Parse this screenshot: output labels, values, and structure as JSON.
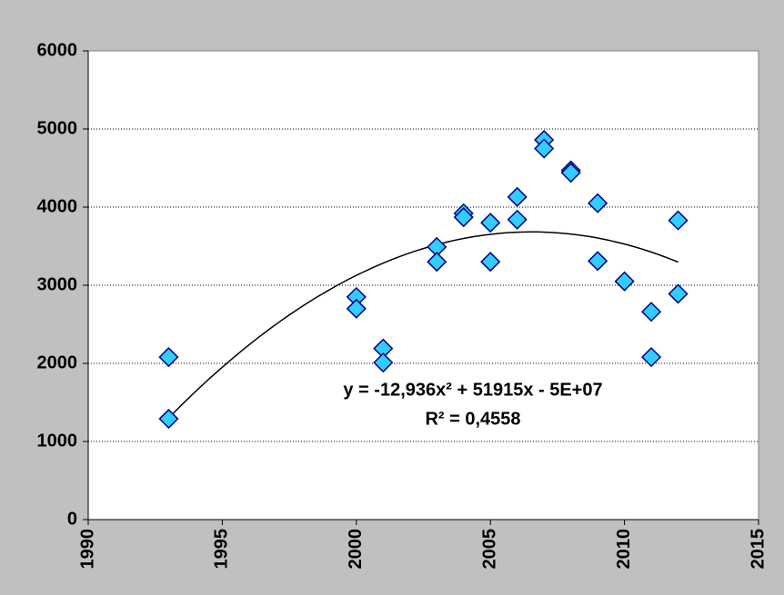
{
  "chart_data": {
    "type": "scatter",
    "x": [
      1993,
      1993,
      2000,
      2000,
      2001,
      2001,
      2003,
      2003,
      2004,
      2004,
      2005,
      2005,
      2006,
      2006,
      2007,
      2007,
      2008,
      2008,
      2009,
      2009,
      2010,
      2011,
      2011,
      2012,
      2012
    ],
    "values": [
      2080,
      1290,
      2850,
      2700,
      2190,
      2010,
      3490,
      3300,
      3920,
      3870,
      3800,
      3300,
      4130,
      3840,
      4860,
      4750,
      4470,
      4440,
      4050,
      3310,
      3050,
      2660,
      2080,
      3830,
      2890
    ],
    "color": "#33ccff",
    "marker_edge_color": "#000080",
    "xlim": [
      1990,
      2015
    ],
    "xticks": [
      1990,
      1995,
      2000,
      2005,
      2010,
      2015
    ],
    "ylim": [
      0,
      6000
    ],
    "yticks": [
      0,
      1000,
      2000,
      3000,
      4000,
      5000,
      6000
    ],
    "grid": true,
    "trendline": "polynomial",
    "annotations": [
      "y = -12,936x² + 51915x - 5E+07",
      "R² = 0,4558"
    ]
  }
}
